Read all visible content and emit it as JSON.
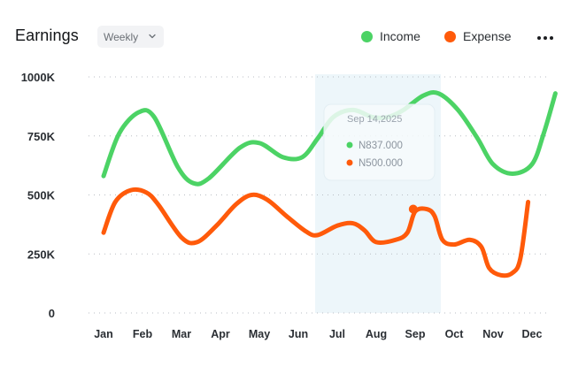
{
  "header": {
    "title": "Earnings",
    "period": "Weekly"
  },
  "legend": [
    {
      "label": "Income",
      "color": "#4cd365"
    },
    {
      "label": "Expense",
      "color": "#ff5a0a"
    }
  ],
  "icons": {
    "period_chevron": "chevron-down-icon",
    "menu": "more-horizontal-icon"
  },
  "tooltip": {
    "date": "Sep 14,2025",
    "income": "N837.000",
    "expense": "N500.000",
    "income_color": "#4cd365",
    "expense_color": "#ff5a0a"
  },
  "chart_data": {
    "type": "line",
    "categories": [
      "Jan",
      "Feb",
      "Mar",
      "Apr",
      "May",
      "Jun",
      "Jul",
      "Aug",
      "Sep",
      "Oct",
      "Nov",
      "Dec"
    ],
    "ylim": [
      0,
      1000
    ],
    "yticks": [
      {
        "value": 1000,
        "label": "1000K"
      },
      {
        "value": 750,
        "label": "750K"
      },
      {
        "value": 500,
        "label": "500K"
      },
      {
        "value": 250,
        "label": "250K"
      },
      {
        "value": 0,
        "label": "0"
      }
    ],
    "grid": true,
    "highlight_band": {
      "from": "Jul",
      "to": "Sep",
      "color": "#edf6fa"
    },
    "series": [
      {
        "name": "Income",
        "color": "#4cd365",
        "points": [
          [
            0.0,
            580
          ],
          [
            0.4,
            760
          ],
          [
            0.9,
            850
          ],
          [
            1.3,
            830
          ],
          [
            1.9,
            620
          ],
          [
            2.3,
            550
          ],
          [
            2.7,
            570
          ],
          [
            3.5,
            700
          ],
          [
            4.0,
            720
          ],
          [
            4.6,
            660
          ],
          [
            5.1,
            660
          ],
          [
            5.5,
            740
          ],
          [
            5.9,
            830
          ],
          [
            6.4,
            860
          ],
          [
            6.9,
            830
          ],
          [
            7.3,
            830
          ],
          [
            7.7,
            860
          ],
          [
            8.2,
            920
          ],
          [
            8.6,
            930
          ],
          [
            9.1,
            860
          ],
          [
            9.6,
            740
          ],
          [
            10.0,
            630
          ],
          [
            10.5,
            590
          ],
          [
            11.0,
            630
          ],
          [
            11.3,
            760
          ],
          [
            11.6,
            930
          ]
        ]
      },
      {
        "name": "Expense",
        "color": "#ff5a0a",
        "points": [
          [
            0.0,
            340
          ],
          [
            0.3,
            470
          ],
          [
            0.7,
            520
          ],
          [
            1.1,
            510
          ],
          [
            1.4,
            460
          ],
          [
            2.0,
            320
          ],
          [
            2.4,
            300
          ],
          [
            2.9,
            370
          ],
          [
            3.4,
            460
          ],
          [
            3.8,
            500
          ],
          [
            4.2,
            480
          ],
          [
            4.7,
            410
          ],
          [
            5.2,
            345
          ],
          [
            5.5,
            330
          ],
          [
            6.0,
            370
          ],
          [
            6.4,
            380
          ],
          [
            6.7,
            350
          ],
          [
            7.0,
            300
          ],
          [
            7.5,
            310
          ],
          [
            7.8,
            340
          ],
          [
            8.0,
            430
          ],
          [
            8.3,
            440
          ],
          [
            8.5,
            410
          ],
          [
            8.7,
            310
          ],
          [
            9.0,
            290
          ],
          [
            9.4,
            310
          ],
          [
            9.7,
            280
          ],
          [
            9.9,
            190
          ],
          [
            10.2,
            160
          ],
          [
            10.5,
            170
          ],
          [
            10.7,
            230
          ],
          [
            10.9,
            470
          ]
        ]
      }
    ],
    "selected_point": {
      "series": "Expense",
      "x": 7.95,
      "y": 440
    }
  }
}
